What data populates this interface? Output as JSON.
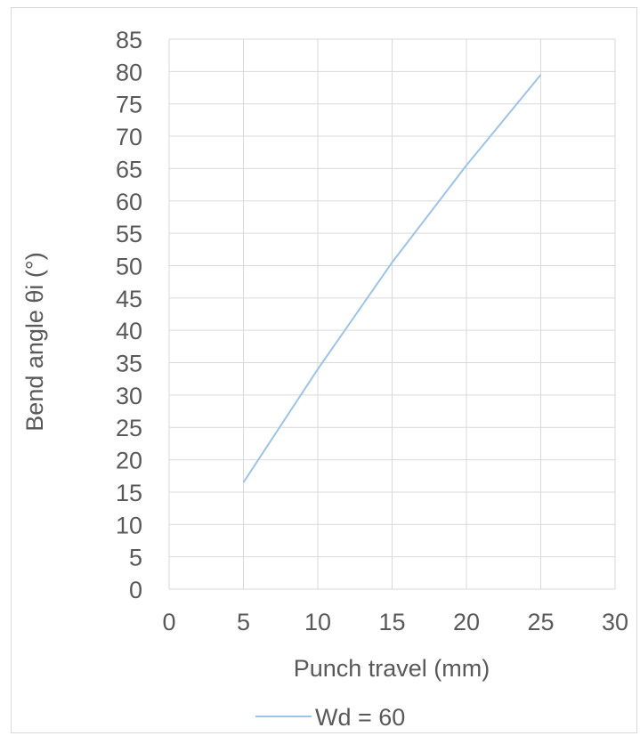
{
  "chart_data": {
    "type": "line",
    "title": "",
    "xlabel": "Punch travel (mm)",
    "ylabel": "Bend angle θi (°)",
    "xlim": [
      0,
      30
    ],
    "ylim": [
      0,
      85
    ],
    "x_ticks": [
      0,
      5,
      10,
      15,
      20,
      25,
      30
    ],
    "y_ticks": [
      0,
      5,
      10,
      15,
      20,
      25,
      30,
      35,
      40,
      45,
      50,
      55,
      60,
      65,
      70,
      75,
      80,
      85
    ],
    "grid": true,
    "legend_position": "bottom",
    "series": [
      {
        "name": "Wd = 60",
        "color": "#9dc3e6",
        "x": [
          5,
          10,
          15,
          20,
          25
        ],
        "y": [
          16.5,
          34,
          50.5,
          65.5,
          79.5
        ]
      }
    ]
  }
}
